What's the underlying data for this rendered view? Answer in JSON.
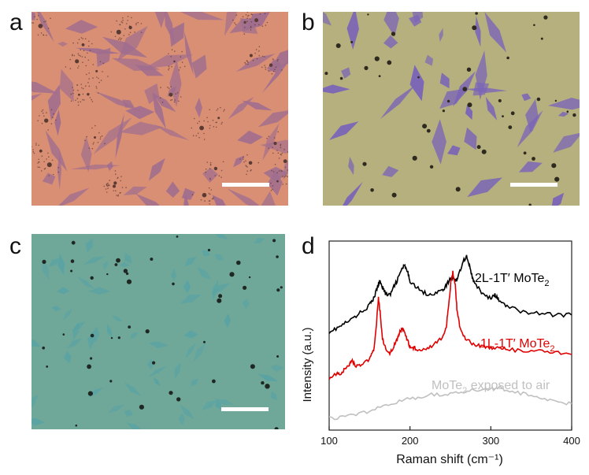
{
  "panels": [
    {
      "label": "a",
      "bg": "#d98f74",
      "flake": "#9f6d8f",
      "dot": "#5a3b33"
    },
    {
      "label": "b",
      "bg": "#b6b07e",
      "flake": "#7a64b8",
      "dot": "#2f2a1f"
    },
    {
      "label": "c",
      "bg": "#6fa899",
      "flake": "#5aa3a4",
      "dot": "#1f2723"
    },
    {
      "label": "d"
    }
  ],
  "chart_data": {
    "type": "line",
    "xlabel": "Raman shift (cm⁻¹)",
    "ylabel": "Intensity (a.u.)",
    "xlim": [
      100,
      400
    ],
    "xticks": [
      "100",
      "200",
      "300",
      "400"
    ],
    "series": [
      {
        "name": "2L-1T′ MoTe₂",
        "label_main": "2L-1T′ MoTe",
        "label_sub": "2",
        "color": "#000000",
        "x": [
          100,
          110,
          120,
          130,
          140,
          150,
          155,
          160,
          163,
          167,
          170,
          175,
          180,
          185,
          190,
          193,
          197,
          200,
          210,
          220,
          230,
          240,
          245,
          250,
          253,
          257,
          260,
          265,
          270,
          273,
          277,
          280,
          290,
          300,
          305,
          310,
          320,
          340,
          360,
          380,
          400
        ],
        "y": [
          0.7,
          0.72,
          0.75,
          0.78,
          0.82,
          0.86,
          0.9,
          0.97,
          1.01,
          0.96,
          0.93,
          0.92,
          0.97,
          1.02,
          1.08,
          1.1,
          1.06,
          1.01,
          0.96,
          0.93,
          0.93,
          0.95,
          0.98,
          1.02,
          1.03,
          1.01,
          1.04,
          1.12,
          1.16,
          1.11,
          1.03,
          0.99,
          0.93,
          0.9,
          0.92,
          0.89,
          0.85,
          0.82,
          0.81,
          0.8,
          0.8
        ]
      },
      {
        "name": "1L-1T′ MoTe₂",
        "label_main": "1L-1T′ MoTe",
        "label_sub": "2",
        "color": "#e00000",
        "x": [
          100,
          110,
          115,
          120,
          125,
          128,
          132,
          140,
          150,
          155,
          158,
          161,
          163,
          166,
          170,
          175,
          180,
          185,
          188,
          191,
          194,
          197,
          200,
          205,
          210,
          220,
          230,
          240,
          245,
          248,
          251,
          253,
          256,
          258,
          262,
          270,
          280,
          290,
          300,
          310,
          320,
          340,
          360,
          380,
          400
        ],
        "y": [
          0.42,
          0.44,
          0.45,
          0.47,
          0.5,
          0.53,
          0.49,
          0.5,
          0.53,
          0.58,
          0.72,
          0.9,
          0.82,
          0.66,
          0.59,
          0.57,
          0.61,
          0.66,
          0.7,
          0.72,
          0.68,
          0.64,
          0.61,
          0.6,
          0.59,
          0.6,
          0.62,
          0.66,
          0.73,
          0.87,
          1.02,
          1.06,
          0.98,
          0.84,
          0.72,
          0.65,
          0.62,
          0.61,
          0.6,
          0.6,
          0.59,
          0.58,
          0.58,
          0.57,
          0.56
        ]
      },
      {
        "name": "MoTe₂ exposed to air",
        "label_main": "MoTe",
        "label_sub": "2",
        "label_tail": " exposed to air",
        "color": "#c0c0c0",
        "x": [
          100,
          120,
          140,
          160,
          180,
          200,
          220,
          240,
          260,
          280,
          300,
          310,
          320,
          340,
          360,
          380,
          400
        ],
        "y": [
          0.17,
          0.18,
          0.2,
          0.23,
          0.27,
          0.29,
          0.31,
          0.32,
          0.33,
          0.34,
          0.35,
          0.36,
          0.34,
          0.32,
          0.3,
          0.28,
          0.26
        ]
      }
    ],
    "ylim": [
      0.1,
      1.25
    ],
    "grid": false,
    "yticks_shown": false
  }
}
